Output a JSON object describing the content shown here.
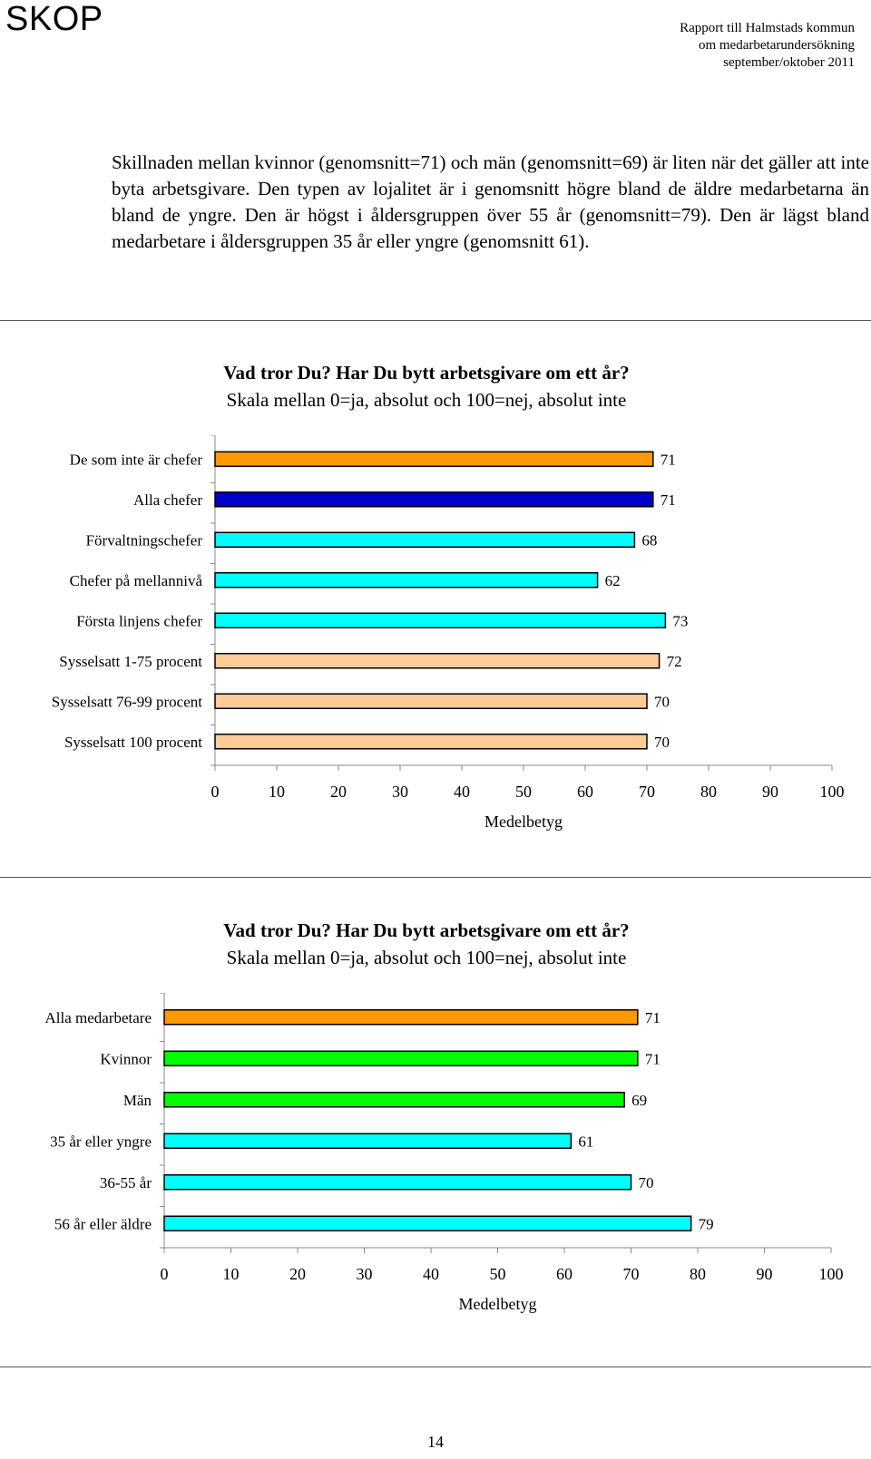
{
  "header": {
    "logo": "SKOP",
    "report_lines": [
      "Rapport till Halmstads kommun",
      "om medarbetarundersökning",
      "september/oktober 2011"
    ]
  },
  "intro_text": "Skillnaden mellan kvinnor (genomsnitt=71) och män (genomsnitt=69) är liten när det gäller att inte byta arbetsgivare. Den typen av lojalitet är i genomsnitt högre bland de äldre medarbetarna än bland de yngre. Den är högst i åldersgruppen över 55 år (genomsnitt=79). Den är lägst bland medarbetare i åldersgruppen 35 år eller yngre (genomsnitt 61).",
  "chart_data": [
    {
      "type": "bar",
      "orientation": "horizontal",
      "title": "Vad tror Du? Har Du bytt arbetsgivare om ett år?",
      "subtitle": "Skala mellan 0=ja, absolut och 100=nej, absolut inte",
      "xlabel": "Medelbetyg",
      "xlim": [
        0,
        100
      ],
      "xticks": [
        0,
        10,
        20,
        30,
        40,
        50,
        60,
        70,
        80,
        90,
        100
      ],
      "categories": [
        "De som inte är chefer",
        "Alla chefer",
        "Förvaltningschefer",
        "Chefer på mellannivå",
        "Första linjens chefer",
        "Sysselsatt 1-75 procent",
        "Sysselsatt 76-99 procent",
        "Sysselsatt 100 procent"
      ],
      "values": [
        71,
        71,
        68,
        62,
        73,
        72,
        70,
        70
      ],
      "colors": [
        "#FF9900",
        "#0000CC",
        "#00FFFF",
        "#00FFFF",
        "#00FFFF",
        "#FFCC99",
        "#FFCC99",
        "#FFCC99"
      ]
    },
    {
      "type": "bar",
      "orientation": "horizontal",
      "title": "Vad tror Du? Har Du bytt arbetsgivare om ett år?",
      "subtitle": "Skala mellan 0=ja, absolut och 100=nej, absolut inte",
      "xlabel": "Medelbetyg",
      "xlim": [
        0,
        100
      ],
      "xticks": [
        0,
        10,
        20,
        30,
        40,
        50,
        60,
        70,
        80,
        90,
        100
      ],
      "categories": [
        "Alla medarbetare",
        "Kvinnor",
        "Män",
        "35 år eller yngre",
        "36-55 år",
        "56 år eller äldre"
      ],
      "values": [
        71,
        71,
        69,
        61,
        70,
        79
      ],
      "colors": [
        "#FF9900",
        "#00FF00",
        "#00FF00",
        "#00FFFF",
        "#00FFFF",
        "#00FFFF"
      ]
    }
  ],
  "page_number": "14"
}
